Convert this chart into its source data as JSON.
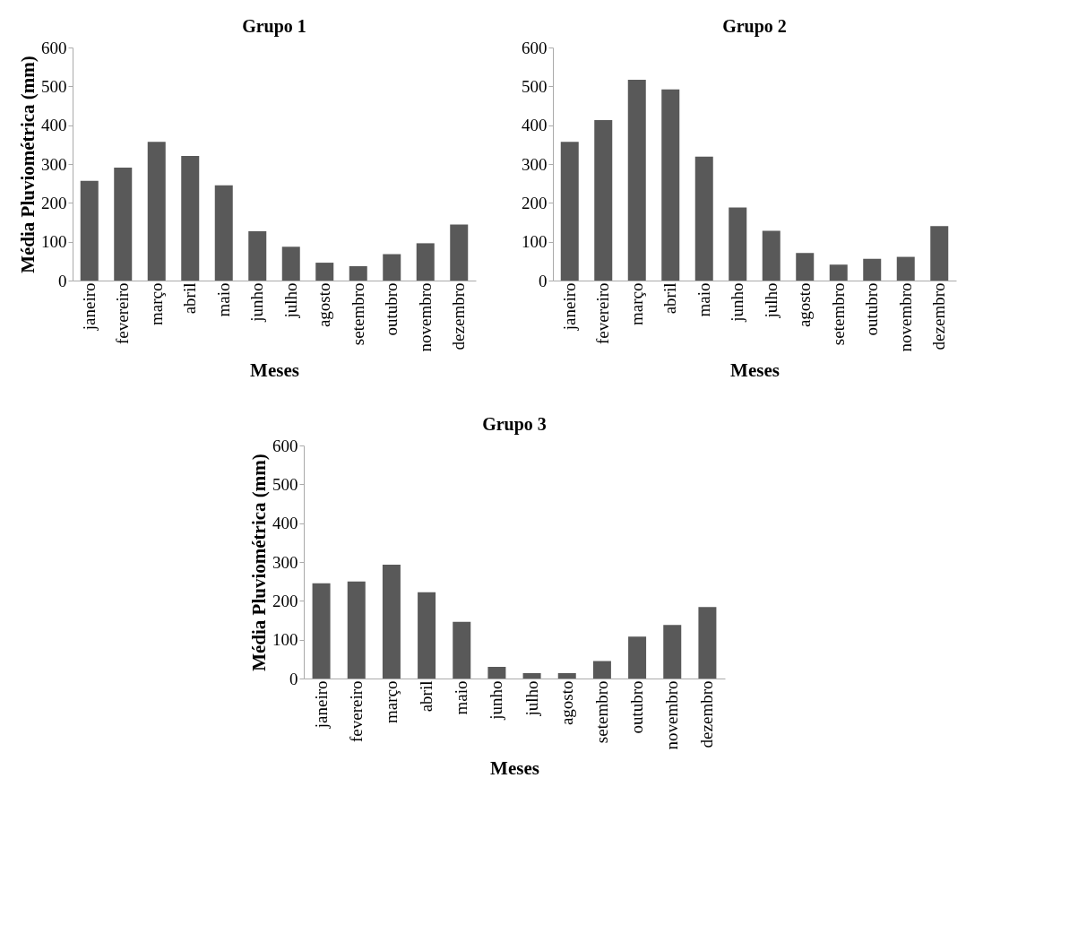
{
  "chart_data": [
    {
      "type": "bar",
      "title": "Grupo 1",
      "xlabel": "Meses",
      "ylabel": "Média Pluviométrica (mm)",
      "categories": [
        "janeiro",
        "fevereiro",
        "março",
        "abril",
        "maio",
        "junho",
        "julho",
        "agosto",
        "setembro",
        "outubro",
        "novembro",
        "dezembro"
      ],
      "values": [
        257,
        291,
        357,
        321,
        245,
        127,
        87,
        46,
        37,
        68,
        96,
        144
      ],
      "color": "#595959",
      "ylim": [
        0,
        600
      ],
      "yticks": [
        0,
        100,
        200,
        300,
        400,
        500,
        600
      ]
    },
    {
      "type": "bar",
      "title": "Grupo 2",
      "xlabel": "Meses",
      "categories": [
        "janeiro",
        "fevereiro",
        "março",
        "abril",
        "maio",
        "junho",
        "julho",
        "agosto",
        "setembro",
        "outubro",
        "novembro",
        "dezembro"
      ],
      "values": [
        357,
        413,
        517,
        492,
        319,
        188,
        128,
        71,
        41,
        56,
        61,
        140
      ],
      "color": "#595959",
      "ylim": [
        0,
        600
      ],
      "yticks": [
        0,
        100,
        200,
        300,
        400,
        500,
        600
      ]
    },
    {
      "type": "bar",
      "title": "Grupo 3",
      "xlabel": "Meses",
      "ylabel": "Média Pluviométrica (mm)",
      "categories": [
        "janeiro",
        "fevereiro",
        "março",
        "abril",
        "maio",
        "junho",
        "julho",
        "agosto",
        "setembro",
        "outubro",
        "novembro",
        "dezembro"
      ],
      "values": [
        245,
        250,
        293,
        222,
        146,
        30,
        14,
        14,
        45,
        108,
        138,
        184
      ],
      "color": "#595959",
      "ylim": [
        0,
        600
      ],
      "yticks": [
        0,
        100,
        200,
        300,
        400,
        500,
        600
      ]
    }
  ]
}
